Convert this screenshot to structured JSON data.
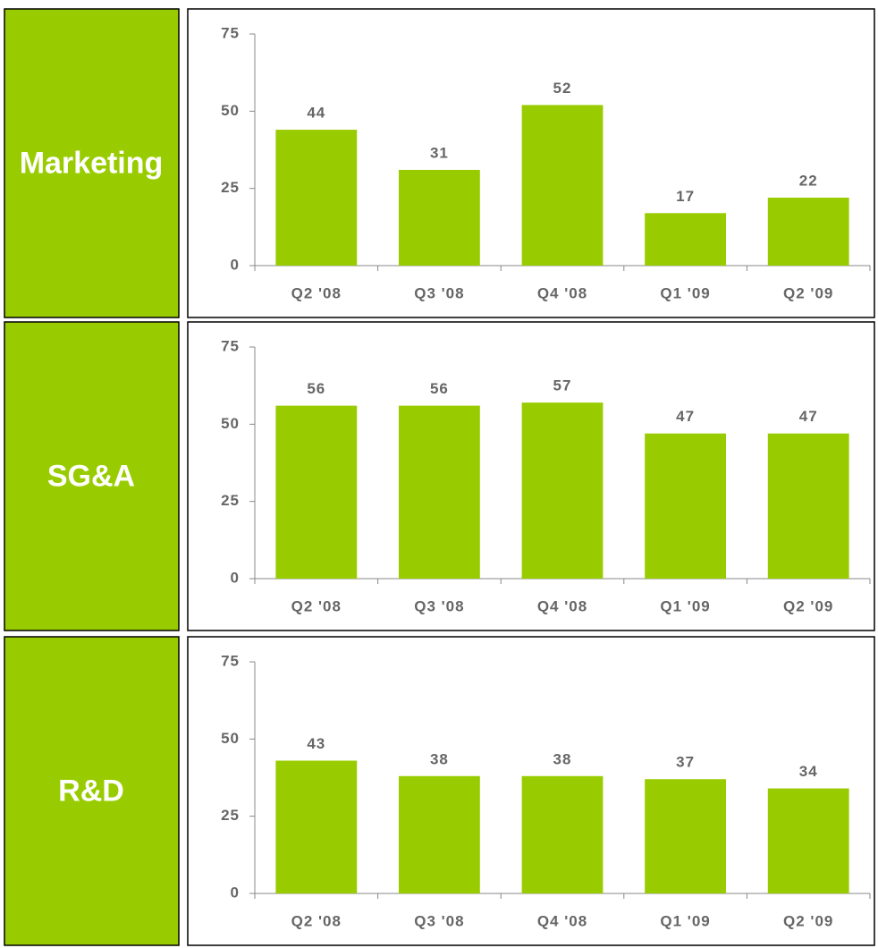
{
  "chart_data": [
    {
      "type": "bar",
      "title": "Marketing",
      "categories": [
        "Q2 '08",
        "Q3 '08",
        "Q4 '08",
        "Q1 '09",
        "Q2 '09"
      ],
      "values": [
        44,
        31,
        52,
        17,
        22
      ],
      "color": "#99cc00",
      "ylim": [
        0,
        75
      ],
      "yticks": [
        0,
        25,
        50,
        75
      ]
    },
    {
      "type": "bar",
      "title": "SG&A",
      "categories": [
        "Q2 '08",
        "Q3 '08",
        "Q4 '08",
        "Q1 '09",
        "Q2 '09"
      ],
      "values": [
        56,
        56,
        57,
        47,
        47
      ],
      "color": "#99cc00",
      "ylim": [
        0,
        75
      ],
      "yticks": [
        0,
        25,
        50,
        75
      ]
    },
    {
      "type": "bar",
      "title": "R&D",
      "categories": [
        "Q2 '08",
        "Q3 '08",
        "Q4 '08",
        "Q1 '09",
        "Q2 '09"
      ],
      "values": [
        43,
        38,
        38,
        37,
        34
      ],
      "color": "#99cc00",
      "ylim": [
        0,
        75
      ],
      "yticks": [
        0,
        25,
        50,
        75
      ]
    }
  ]
}
